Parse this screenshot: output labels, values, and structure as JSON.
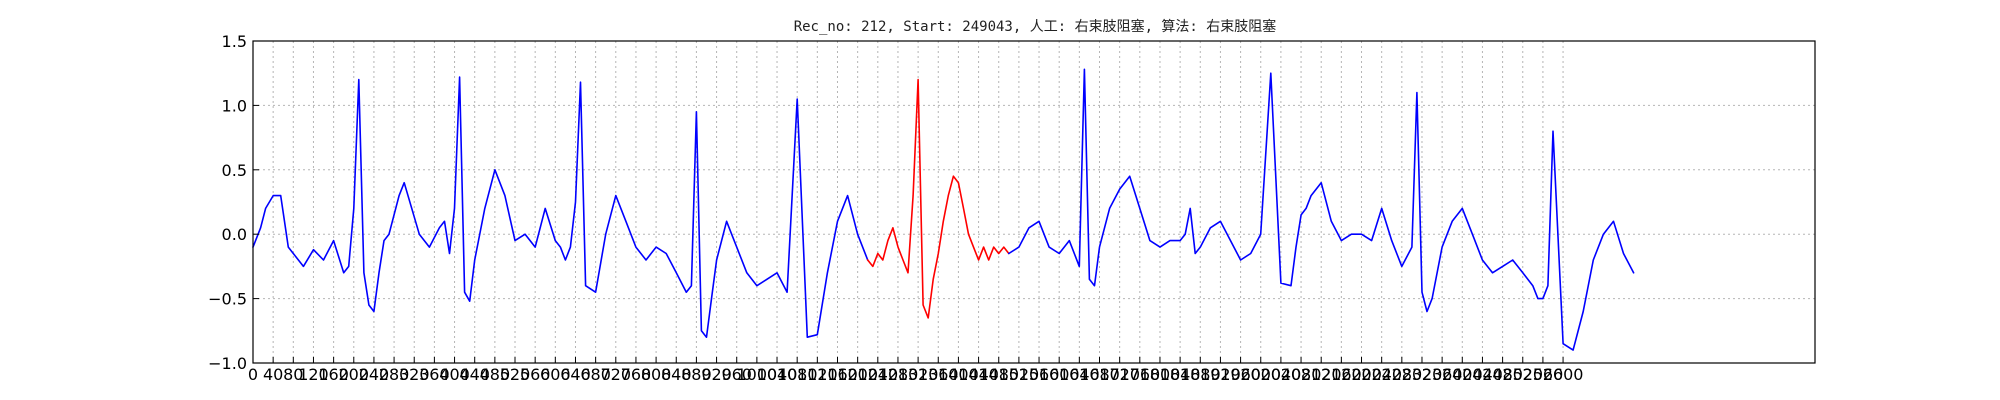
{
  "chart_data": {
    "type": "line",
    "title": "Rec_no: 212, Start: 249043, 人工: 右束肢阻塞, 算法: 右束肢阻塞",
    "xlabel": "",
    "ylabel": "",
    "xlim": [
      0,
      3100
    ],
    "ylim": [
      -1.0,
      1.5
    ],
    "grid": true,
    "colors": {
      "normal": "#0000ff",
      "highlight": "#ff0000",
      "axes": "#000000",
      "grid": "#b5b5b5"
    },
    "y_ticks": [
      "1.5",
      "1.0",
      "0.5",
      "0.0",
      "−0.5",
      "−1.0"
    ],
    "x_ticks": [
      "0",
      "40",
      "80",
      "120",
      "160",
      "200",
      "240",
      "280",
      "320",
      "360",
      "400",
      "440",
      "480",
      "520",
      "560",
      "600",
      "640",
      "680",
      "720",
      "760",
      "800",
      "840",
      "880",
      "920",
      "960",
      "1000",
      "1040",
      "1080",
      "1120",
      "1160",
      "1200",
      "1240",
      "1280",
      "1320",
      "1360",
      "1400",
      "1440",
      "1480",
      "1520",
      "1560",
      "1600",
      "1640",
      "1680",
      "1720",
      "1760",
      "1800",
      "1840",
      "1880",
      "1920",
      "1960",
      "2000",
      "2040",
      "2080",
      "2120",
      "2160",
      "2200",
      "2240",
      "2280",
      "2320",
      "2360",
      "2400",
      "2440",
      "2480",
      "2520",
      "2560",
      "2600"
    ],
    "highlight_range": [
      1220,
      1500
    ],
    "series": [
      {
        "color": "#0000ff",
        "x": [
          0,
          15,
          25,
          40,
          55,
          70,
          80,
          100,
          120,
          140,
          160,
          180,
          190,
          200,
          210,
          220,
          230,
          240,
          250,
          260,
          270,
          290,
          300,
          330,
          350,
          370,
          380,
          390,
          400,
          410,
          420,
          430,
          440,
          460,
          480,
          500,
          520,
          540,
          560,
          580,
          600,
          610,
          620,
          630,
          640,
          650,
          660,
          680,
          700,
          720,
          740,
          760,
          780,
          800,
          820,
          840,
          860,
          870,
          880,
          890,
          900,
          910,
          920,
          940,
          960,
          980,
          1000,
          1020,
          1040,
          1060,
          1080,
          1100,
          1120,
          1140,
          1160,
          1180,
          1200,
          1220
        ],
        "y": [
          -0.1,
          0.05,
          0.2,
          0.3,
          0.3,
          -0.1,
          -0.15,
          -0.25,
          -0.12,
          -0.2,
          -0.05,
          -0.3,
          -0.25,
          0.2,
          1.2,
          -0.3,
          -0.55,
          -0.6,
          -0.3,
          -0.05,
          0.0,
          0.3,
          0.4,
          0.0,
          -0.1,
          0.05,
          0.1,
          -0.15,
          0.2,
          1.22,
          -0.45,
          -0.52,
          -0.2,
          0.2,
          0.5,
          0.3,
          -0.05,
          0.0,
          -0.1,
          0.2,
          -0.05,
          -0.1,
          -0.2,
          -0.1,
          0.25,
          1.18,
          -0.4,
          -0.45,
          0.0,
          0.3,
          0.1,
          -0.1,
          -0.2,
          -0.1,
          -0.15,
          -0.3,
          -0.45,
          -0.4,
          0.95,
          -0.75,
          -0.8,
          -0.5,
          -0.2,
          0.1,
          -0.1,
          -0.3,
          -0.4,
          -0.35,
          -0.3,
          -0.45,
          1.05,
          -0.8,
          -0.78,
          -0.3,
          0.1,
          0.3,
          0.0,
          -0.2
        ]
      },
      {
        "color": "#ff0000",
        "x": [
          1220,
          1230,
          1240,
          1250,
          1260,
          1270,
          1280,
          1290,
          1300,
          1310,
          1320,
          1330,
          1340,
          1350,
          1360,
          1370,
          1380,
          1390,
          1400,
          1410,
          1420,
          1430,
          1440,
          1450,
          1460,
          1470,
          1480,
          1490,
          1500
        ],
        "y": [
          -0.2,
          -0.25,
          -0.15,
          -0.2,
          -0.05,
          0.05,
          -0.1,
          -0.2,
          -0.3,
          0.3,
          1.2,
          -0.55,
          -0.65,
          -0.35,
          -0.15,
          0.1,
          0.3,
          0.45,
          0.4,
          0.2,
          0.0,
          -0.1,
          -0.2,
          -0.1,
          -0.2,
          -0.1,
          -0.15,
          -0.1,
          -0.15
        ]
      },
      {
        "color": "#0000ff",
        "x": [
          1500,
          1520,
          1540,
          1560,
          1580,
          1600,
          1620,
          1640,
          1650,
          1660,
          1670,
          1680,
          1700,
          1720,
          1740,
          1760,
          1780,
          1800,
          1820,
          1840,
          1850,
          1860,
          1870,
          1880,
          1900,
          1920,
          1940,
          1960,
          1980,
          2000,
          2020,
          2040,
          2060,
          2070,
          2080,
          2090,
          2100,
          2120,
          2140,
          2160,
          2180,
          2200,
          2220,
          2240,
          2260,
          2280,
          2300,
          2310,
          2320,
          2330,
          2340,
          2360,
          2380,
          2400,
          2420,
          2440,
          2460,
          2480,
          2500,
          2520,
          2540,
          2550,
          2560,
          2570,
          2580,
          2600,
          2620,
          2640,
          2660,
          2680,
          2700,
          2720,
          2740
        ],
        "y": [
          -0.15,
          -0.1,
          0.05,
          0.1,
          -0.1,
          -0.15,
          -0.05,
          -0.25,
          1.28,
          -0.35,
          -0.4,
          -0.1,
          0.2,
          0.35,
          0.45,
          0.2,
          -0.05,
          -0.1,
          -0.05,
          -0.05,
          0.0,
          0.2,
          -0.15,
          -0.1,
          0.05,
          0.1,
          -0.05,
          -0.2,
          -0.15,
          0.0,
          1.25,
          -0.38,
          -0.4,
          -0.1,
          0.15,
          0.2,
          0.3,
          0.4,
          0.1,
          -0.05,
          0.0,
          0.0,
          -0.05,
          0.2,
          -0.05,
          -0.25,
          -0.1,
          1.1,
          -0.45,
          -0.6,
          -0.5,
          -0.1,
          0.1,
          0.2,
          0.0,
          -0.2,
          -0.3,
          -0.25,
          -0.2,
          -0.3,
          -0.4,
          -0.5,
          -0.5,
          -0.4,
          0.8,
          -0.85,
          -0.9,
          -0.6,
          -0.2,
          0.0,
          0.1,
          -0.15,
          -0.3
        ]
      }
    ]
  }
}
